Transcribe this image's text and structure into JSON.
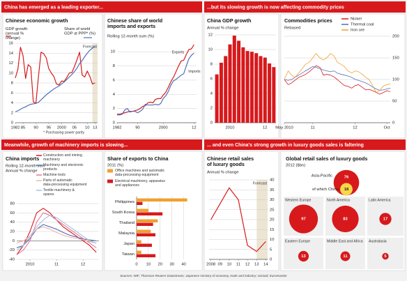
{
  "banners": [
    "China has emerged as a leading exporter...",
    "...but its slowing growth is now affecting commodity prices",
    "Meanwhile, growth of machinery imports is slowing...",
    "... and even China's strong growth in luxury goods sales is faltering"
  ],
  "source": "Sources: IMF; Thomson Reuters Datastream; Japanese ministry of economy, trade and industry; Unctad; Euromonitor",
  "chart_data": [
    {
      "type": "line",
      "title": "Chinese economic growth",
      "x": [
        1982,
        1983,
        1984,
        1985,
        1986,
        1987,
        1988,
        1989,
        1990,
        1991,
        1992,
        1993,
        1994,
        1995,
        1996,
        1997,
        1998,
        1999,
        2000,
        2001,
        2002,
        2003,
        2004,
        2005,
        2006,
        2007,
        2008,
        2009,
        2010,
        2011,
        2012,
        2013
      ],
      "series": [
        {
          "name": "GDP growth (annual % change)",
          "color": "#d7191c",
          "values": [
            9.0,
            10.8,
            15.2,
            13.5,
            8.9,
            11.7,
            11.2,
            4.2,
            3.9,
            9.3,
            14.2,
            13.9,
            13.1,
            10.9,
            10.0,
            9.3,
            7.8,
            7.6,
            8.4,
            8.3,
            9.1,
            10.0,
            10.1,
            11.3,
            12.7,
            14.2,
            9.6,
            9.2,
            10.4,
            9.3,
            7.8,
            8.0
          ]
        },
        {
          "name": "Share of world GDP at PPP* (%)",
          "color": "#4f6fb5",
          "values": [
            2.2,
            2.4,
            2.7,
            3.0,
            3.2,
            3.5,
            3.7,
            3.8,
            3.9,
            4.1,
            4.6,
            5.1,
            5.6,
            6.0,
            6.4,
            6.8,
            7.1,
            7.4,
            7.8,
            8.2,
            8.7,
            9.2,
            9.7,
            10.3,
            11.0,
            11.9,
            12.5,
            13.3,
            14.0,
            14.6,
            15.0,
            15.4
          ]
        }
      ],
      "xlim": [
        1982,
        2014
      ],
      "ylim": [
        0,
        16
      ],
      "yticks": [
        0,
        2,
        4,
        6,
        8,
        10,
        12,
        14,
        16
      ],
      "xticks": [
        1982,
        {
          "value": 1985,
          "label": "85"
        },
        {
          "value": 1990,
          "label": "90"
        },
        {
          "value": 1995,
          "label": "95"
        },
        2000,
        {
          "value": 2005,
          "label": "05"
        },
        {
          "value": 2010,
          "label": "10"
        },
        {
          "value": 2013,
          "label": "13"
        }
      ],
      "forecast_start": 2012,
      "annotation": "Forecast",
      "note": "* Purchasing power parity",
      "grid": true
    },
    {
      "type": "line",
      "title": "Chinese share of world imports and exports",
      "subtitle": "Rolling 12-month sum (%)",
      "x": [
        1982,
        1983,
        1984,
        1985,
        1986,
        1987,
        1988,
        1989,
        1990,
        1991,
        1992,
        1993,
        1994,
        1995,
        1996,
        1997,
        1998,
        1999,
        2000,
        2001,
        2002,
        2003,
        2004,
        2005,
        2006,
        2007,
        2008,
        2009,
        2010,
        2011,
        2012
      ],
      "series": [
        {
          "name": "Exports",
          "color": "#d7191c",
          "values": [
            1.2,
            1.2,
            1.3,
            1.4,
            1.5,
            1.6,
            1.6,
            1.7,
            1.8,
            2,
            2.3,
            2.4,
            2.8,
            2.9,
            2.8,
            3.3,
            3.4,
            3.4,
            3.9,
            4.3,
            5,
            5.8,
            6.4,
            7.2,
            8,
            8.7,
            8.8,
            9.6,
            10.3,
            10.4,
            11
          ]
        },
        {
          "name": "Imports",
          "color": "#4f6fb5",
          "values": [
            1.1,
            1.1,
            1.2,
            1.8,
            2,
            1.5,
            1.6,
            1.6,
            1.4,
            1.6,
            1.9,
            2.6,
            2.5,
            2.5,
            2.5,
            2.6,
            2.5,
            2.7,
            3.4,
            3.8,
            4.4,
            5.3,
            5.9,
            6.1,
            6.4,
            6.7,
            6.9,
            8,
            9,
            9.5,
            9.8
          ]
        }
      ],
      "xlim": [
        1982,
        2013
      ],
      "ylim": [
        0,
        11
      ],
      "yticks": [
        0,
        2,
        4,
        6,
        8,
        10
      ],
      "xticks": [
        1982,
        {
          "value": 1990,
          "label": "90"
        },
        2000,
        {
          "value": 2012,
          "label": "12"
        }
      ],
      "grid": true
    },
    {
      "type": "bar",
      "title": "China GDP growth",
      "subtitle": "Annual % change",
      "categories": [
        null,
        null,
        null,
        "2010",
        null,
        null,
        null,
        null,
        null,
        null,
        null,
        "12",
        null,
        null
      ],
      "values": [
        6.6,
        8.2,
        9.1,
        10.7,
        11.9,
        11.2,
        10.3,
        9.8,
        9.7,
        9.5,
        9.1,
        8.9,
        8.1,
        7.6
      ],
      "color": "#d7191c",
      "ylim": [
        0,
        12
      ],
      "yticks": [
        0,
        2,
        4,
        6,
        8,
        10,
        12
      ],
      "grid": true
    },
    {
      "type": "line",
      "title": "Commodities prices",
      "subtitle": "Rebased",
      "x": [
        2010.33,
        2010.42,
        2010.5,
        2010.58,
        2010.67,
        2010.75,
        2010.83,
        2010.92,
        2011,
        2011.08,
        2011.17,
        2011.25,
        2011.33,
        2011.42,
        2011.5,
        2011.58,
        2011.67,
        2011.75,
        2011.83,
        2011.92,
        2012,
        2012.08,
        2012.17,
        2012.25,
        2012.33,
        2012.42,
        2012.5,
        2012.58,
        2012.67,
        2012.75,
        2012.83
      ],
      "series": [
        {
          "name": "Nickel",
          "color": "#d7191c",
          "values": [
            100,
            88,
            92,
            98,
            105,
            108,
            112,
            118,
            125,
            132,
            128,
            110,
            112,
            110,
            106,
            100,
            92,
            86,
            84,
            80,
            86,
            88,
            82,
            76,
            77,
            74,
            70,
            66,
            70,
            74,
            72
          ]
        },
        {
          "name": "Thermal coal",
          "color": "#4f6fb5",
          "values": [
            100,
            98,
            100,
            105,
            110,
            115,
            120,
            125,
            130,
            128,
            125,
            122,
            120,
            118,
            120,
            115,
            112,
            110,
            108,
            105,
            100,
            98,
            95,
            92,
            88,
            82,
            78,
            75,
            76,
            78,
            80
          ]
        },
        {
          "name": "Iron ore",
          "color": "#f0a030",
          "values": [
            100,
            120,
            110,
            105,
            115,
            125,
            135,
            140,
            150,
            160,
            150,
            145,
            150,
            160,
            155,
            140,
            135,
            130,
            120,
            115,
            120,
            118,
            112,
            105,
            100,
            85,
            70,
            75,
            85,
            88,
            90
          ]
        }
      ],
      "xlim": [
        2010.33,
        2012.83
      ],
      "ylim": [
        0,
        200
      ],
      "yticks": [
        0,
        50,
        100,
        150,
        200
      ],
      "xticks": [
        {
          "value": 2010.33,
          "label": "May 2010"
        },
        {
          "value": 2011,
          "label": "11"
        },
        {
          "value": 2012,
          "label": "12"
        },
        {
          "value": 2012.75,
          "label": "Oct"
        }
      ],
      "grid": true
    },
    {
      "type": "line",
      "title": "China imports",
      "subtitle": [
        "Rolling 12-month sum",
        "Annual % change"
      ],
      "x": [
        2009.5,
        2009.75,
        2010,
        2010.25,
        2010.5,
        2010.75,
        2011,
        2011.25,
        2011.5,
        2011.75,
        2012,
        2012.25,
        2012.5
      ],
      "series": [
        {
          "name": "Construction and mining machinery",
          "color": "#d7191c",
          "values": [
            -30,
            -10,
            20,
            60,
            70,
            60,
            45,
            30,
            20,
            10,
            0,
            -10,
            -25
          ]
        },
        {
          "name": "Machinery and electronic products",
          "color": "#4f6fb5",
          "values": [
            -15,
            -10,
            5,
            25,
            35,
            30,
            25,
            18,
            12,
            8,
            4,
            2,
            0
          ]
        },
        {
          "name": "Machine tools",
          "color": "#e8789a",
          "values": [
            -30,
            -20,
            0,
            40,
            60,
            55,
            45,
            35,
            25,
            15,
            5,
            -5,
            -15
          ]
        },
        {
          "name": "Parts of automatic data-processing equipment",
          "color": "#f2b3a7",
          "values": [
            -5,
            0,
            10,
            25,
            30,
            25,
            18,
            12,
            8,
            5,
            2,
            -2,
            -5
          ]
        },
        {
          "name": "Textile machinery & spares",
          "color": "#9fc4e0",
          "values": [
            -20,
            -10,
            10,
            30,
            45,
            55,
            50,
            40,
            30,
            20,
            10,
            0,
            -5
          ]
        }
      ],
      "xlim": [
        2009.5,
        2012.6
      ],
      "ylim": [
        -40,
        80
      ],
      "yticks": [
        -40,
        -20,
        0,
        20,
        40,
        60,
        80
      ],
      "xticks": [
        2010,
        {
          "value": 2011,
          "label": "11"
        },
        {
          "value": 2012,
          "label": "12"
        }
      ],
      "grid": true
    },
    {
      "type": "hbar",
      "title": "Share of exports to China",
      "subtitle": "2011 (%)",
      "categories": [
        "Philippines",
        "South Korea",
        "Thailand",
        "Malaysia",
        "Japan",
        "Taiwan"
      ],
      "series": [
        {
          "name": "Office machines and automatic data-processing equipment",
          "color": "#f0a030",
          "values": [
            43,
            10,
            18,
            12,
            4,
            4
          ]
        },
        {
          "name": "Electrical machinery, apparatus and appliances",
          "color": "#d7191c",
          "values": [
            5,
            22,
            14,
            16,
            13,
            16
          ]
        }
      ],
      "xlim": [
        0,
        45
      ],
      "xticks": [
        0,
        10,
        20,
        30,
        40
      ],
      "grid": true
    },
    {
      "type": "line",
      "title": "Chinese retail sales of luxury goods",
      "subtitle": "Annual % change",
      "x": [
        2008,
        2009,
        2010,
        2011,
        2012,
        2013,
        2014
      ],
      "series": [
        {
          "color": "#d7191c",
          "values": [
            20,
            28,
            36,
            30,
            7,
            4,
            9
          ]
        }
      ],
      "xlim": [
        2007.8,
        2014.2
      ],
      "ylim": [
        0,
        40
      ],
      "yticks": [
        0,
        5,
        10,
        15,
        20,
        25,
        30,
        35,
        40
      ],
      "xticks": [
        2008,
        {
          "value": 2009,
          "label": "09"
        },
        {
          "value": 2010,
          "label": "10"
        },
        {
          "value": 2011,
          "label": "11"
        },
        {
          "value": 2012,
          "label": "12"
        },
        {
          "value": 2013,
          "label": "13"
        },
        {
          "value": 2014,
          "label": "14"
        }
      ],
      "forecast_start": 2013,
      "annotation": "Forecast",
      "grid": true
    },
    {
      "type": "bubble",
      "title": "Global retail sales of luxury goods",
      "subtitle": "2012 ($bn)",
      "categories": [
        "Asia-Pacific",
        "of which China",
        "Western Europe",
        "North America",
        "Latin America",
        "Eastern Europe",
        "Middle East and Africa",
        "Australasia"
      ],
      "values": [
        76,
        18,
        97,
        83,
        17,
        13,
        11,
        5
      ],
      "colors": [
        "#d7191c",
        "#f8d848",
        "#d7191c",
        "#d7191c",
        "#d7191c",
        "#d7191c",
        "#d7191c",
        "#d7191c"
      ]
    }
  ]
}
